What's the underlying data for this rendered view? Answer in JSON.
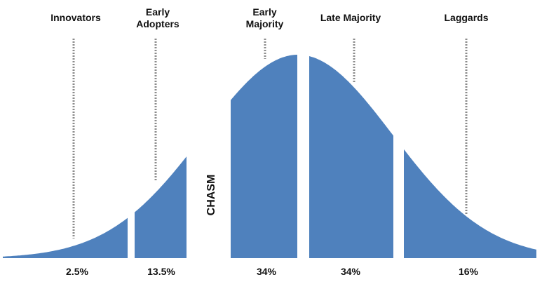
{
  "segments": [
    {
      "label": "Innovators",
      "percent": "2.5%"
    },
    {
      "label": "Early\nAdopters",
      "percent": "13.5%"
    },
    {
      "label": "Early\nMajority",
      "percent": "34%"
    },
    {
      "label": "Late Majority",
      "percent": "34%"
    },
    {
      "label": "Laggards",
      "percent": "16%"
    }
  ],
  "gap_label": "CHASM",
  "colors": {
    "fill": "#4f81bd",
    "connector": "#8c8c8c",
    "text": "#111111"
  }
}
